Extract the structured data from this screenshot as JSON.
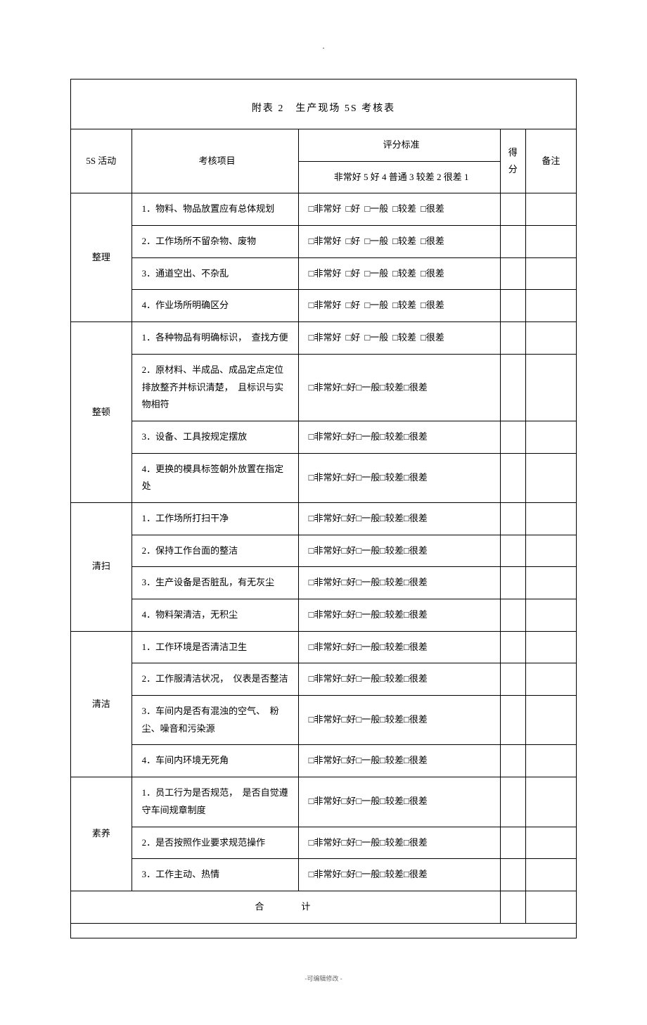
{
  "page_marker": ".",
  "title": "附表 2　生产现场 5S 考核表",
  "header": {
    "activity": "5S 活动",
    "item": "考核项目",
    "rating_caption": "评分标准",
    "rating_scale": "非常好 5 好 4 普通 3 较差 2 很差 1",
    "score": "得分",
    "note": "备注"
  },
  "rating_options_spaced": [
    "□非常好",
    "□好",
    "□一般",
    "□较差",
    "□很差"
  ],
  "rating_options_tight": "□非常好□好□一般□较差□很差",
  "sections": [
    {
      "name": "整理",
      "spaced": true,
      "items": [
        "1．物料、物品放置应有总体规划",
        "2．工作场所不留杂物、废物",
        "3．通道空出、不杂乱",
        "4．作业场所明确区分"
      ]
    },
    {
      "name": "整顿",
      "items": [
        {
          "text": "1．各种物品有明确标识，　查找方便",
          "spaced": true
        },
        {
          "text": "2．原材料、半成品、成品定点定位排放整齐并标识清楚，　且标识与实物相符"
        },
        {
          "text": "3．设备、工具按规定摆放"
        },
        {
          "text": "4．更换的模具标签朝外放置在指定处"
        }
      ]
    },
    {
      "name": "清扫",
      "items": [
        "1．工作场所打扫干净",
        "2．保持工作台面的整洁",
        "3．生产设备是否脏乱，有无灰尘",
        "4．物料架清洁，无积尘"
      ]
    },
    {
      "name": "清洁",
      "items": [
        "1．工作环境是否清洁卫生",
        "2．工作服清洁状况，　仪表是否整洁",
        "3．车间内是否有混浊的空气、　粉尘、噪音和污染源",
        "4．车间内环境无死角"
      ]
    },
    {
      "name": "素养",
      "items": [
        "1．员工行为是否规范，　是否自觉遵守车间规章制度",
        "2．是否按照作业要求规范操作",
        "3．工作主动、热情"
      ]
    }
  ],
  "total_label": "合　计",
  "footer": "-可编辑修改 -"
}
